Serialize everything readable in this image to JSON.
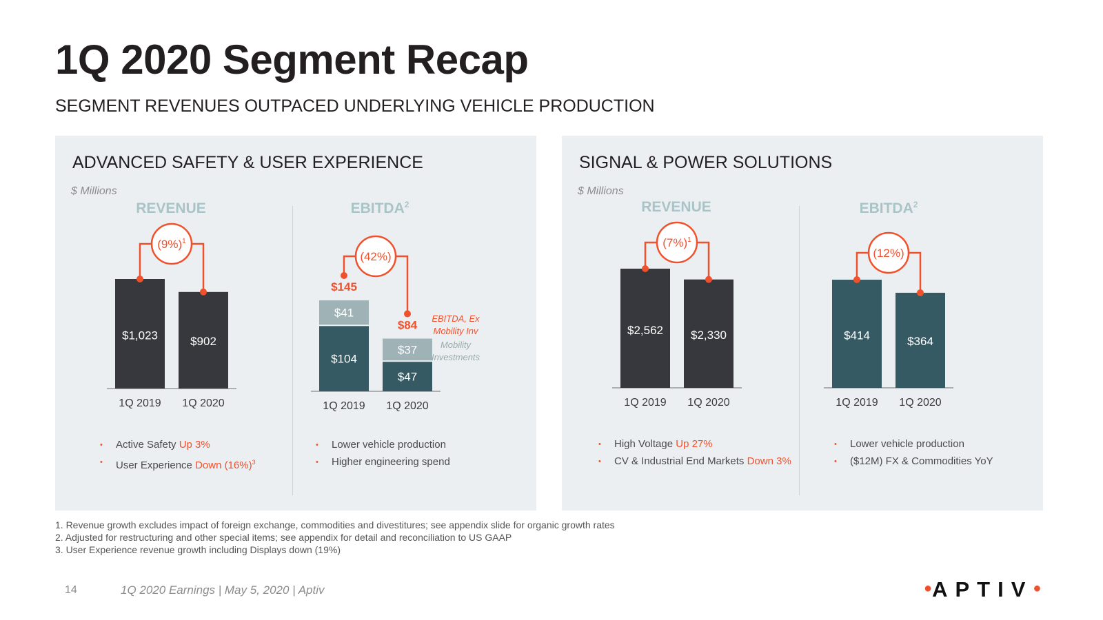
{
  "title": "1Q 2020 Segment Recap",
  "subtitle": "SEGMENT REVENUES OUTPACED UNDERLYING VEHICLE PRODUCTION",
  "colors": {
    "accent": "#f0512d",
    "revenue_bar": "#36383d",
    "ebitda_bar": "#365a63",
    "mobility_bar": "#9fb3b7",
    "chart_label": "#a9c4c7",
    "panel_bg": "#eceff2"
  },
  "panels": [
    {
      "title": "ADVANCED SAFETY & USER EXPERIENCE",
      "units": "$ Millions",
      "bullets_left": [
        {
          "pre": "Active Safety ",
          "hl": "Up 3%",
          "sup": ""
        },
        {
          "pre": "User Experience ",
          "hl": "Down (16%)",
          "sup": "3"
        }
      ],
      "bullets_right": [
        {
          "pre": "Lower vehicle production",
          "hl": "",
          "sup": ""
        },
        {
          "pre": "Higher engineering spend",
          "hl": "",
          "sup": ""
        }
      ]
    },
    {
      "title": "SIGNAL & POWER SOLUTIONS",
      "units": "$ Millions",
      "bullets_left": [
        {
          "pre": "High Voltage ",
          "hl": "Up 27%",
          "sup": ""
        },
        {
          "pre": "CV & Industrial End Markets ",
          "hl": "Down 3%",
          "sup": ""
        }
      ],
      "bullets_right": [
        {
          "pre": "Lower vehicle production",
          "hl": "",
          "sup": ""
        },
        {
          "pre": "($12M) FX & Commodities YoY",
          "hl": "",
          "sup": ""
        }
      ]
    }
  ],
  "chart_data": [
    {
      "type": "bar",
      "segment": "ADVANCED SAFETY & USER EXPERIENCE",
      "title": "REVENUE",
      "title_sup": "",
      "categories": [
        "1Q 2019",
        "1Q 2020"
      ],
      "values": [
        1023,
        902
      ],
      "value_labels": [
        "$1,023",
        "$902"
      ],
      "change": "(9%)",
      "change_sup": "1"
    },
    {
      "type": "bar",
      "stacked": true,
      "segment": "ADVANCED SAFETY & USER EXPERIENCE",
      "title": "EBITDA",
      "title_sup": "2",
      "categories": [
        "1Q 2019",
        "1Q 2020"
      ],
      "series": [
        {
          "values": [
            104,
            47
          ],
          "value_labels": [
            "$104",
            "$47"
          ]
        },
        {
          "name": "Mobility Investments",
          "values": [
            41,
            37
          ],
          "value_labels": [
            "$41",
            "$37"
          ]
        }
      ],
      "totals": [
        145,
        84
      ],
      "total_labels": [
        "$145",
        "$84"
      ],
      "total_series_label": "EBITDA, Ex Mobility Inv",
      "change": "(42%)",
      "change_sup": ""
    },
    {
      "type": "bar",
      "segment": "SIGNAL & POWER SOLUTIONS",
      "title": "REVENUE",
      "title_sup": "",
      "categories": [
        "1Q 2019",
        "1Q 2020"
      ],
      "values": [
        2562,
        2330
      ],
      "value_labels": [
        "$2,562",
        "$2,330"
      ],
      "change": "(7%)",
      "change_sup": "1"
    },
    {
      "type": "bar",
      "segment": "SIGNAL & POWER SOLUTIONS",
      "title": "EBITDA",
      "title_sup": "2",
      "categories": [
        "1Q 2019",
        "1Q 2020"
      ],
      "values": [
        414,
        364
      ],
      "value_labels": [
        "$414",
        "$364"
      ],
      "change": "(12%)",
      "change_sup": ""
    }
  ],
  "footnotes": [
    "1. Revenue growth excludes impact of foreign exchange, commodities and divestitures; see appendix slide for organic growth rates",
    "2. Adjusted for restructuring and other special items; see appendix for detail and reconciliation to US GAAP",
    "3. User Experience revenue growth including Displays down (19%)"
  ],
  "footer": {
    "page_number": "14",
    "text": "1Q 2020 Earnings | May 5, 2020 | Aptiv",
    "logo": "APTIV"
  }
}
